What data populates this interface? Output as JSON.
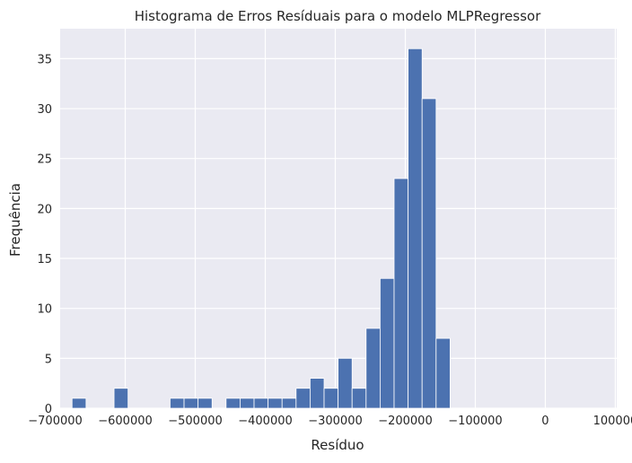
{
  "chart_data": {
    "type": "bar",
    "title": "Histograma de Erros Resíduais para o modelo MLPRegressor",
    "xlabel": "Resíduo",
    "ylabel": "Frequência",
    "xlim": [
      -693000,
      102000
    ],
    "ylim": [
      0,
      38
    ],
    "x_ticks": [
      -700000,
      -600000,
      -500000,
      -400000,
      -300000,
      -200000,
      -100000,
      0,
      100000
    ],
    "x_tick_labels": [
      "−700000",
      "−600000",
      "−500000",
      "−400000",
      "−300000",
      "−200000",
      "−100000",
      "0",
      "100000"
    ],
    "y_ticks": [
      0,
      5,
      10,
      15,
      20,
      25,
      30,
      35
    ],
    "y_tick_labels": [
      "0",
      "5",
      "10",
      "15",
      "20",
      "25",
      "30",
      "35"
    ],
    "grid": true,
    "bar_color": "#4c72b0",
    "background_color": "#eaeaf2",
    "bins": [
      {
        "x0": -676000,
        "x1": -656000,
        "count": 1
      },
      {
        "x0": -656000,
        "x1": -636000,
        "count": 0
      },
      {
        "x0": -636000,
        "x1": -616000,
        "count": 0
      },
      {
        "x0": -616000,
        "x1": -596000,
        "count": 2
      },
      {
        "x0": -596000,
        "x1": -576000,
        "count": 0
      },
      {
        "x0": -576000,
        "x1": -556000,
        "count": 0
      },
      {
        "x0": -556000,
        "x1": -536000,
        "count": 0
      },
      {
        "x0": -536000,
        "x1": -516000,
        "count": 1
      },
      {
        "x0": -516000,
        "x1": -496000,
        "count": 1
      },
      {
        "x0": -496000,
        "x1": -476000,
        "count": 1
      },
      {
        "x0": -476000,
        "x1": -456000,
        "count": 0
      },
      {
        "x0": -456000,
        "x1": -436000,
        "count": 1
      },
      {
        "x0": -436000,
        "x1": -416000,
        "count": 1
      },
      {
        "x0": -416000,
        "x1": -396000,
        "count": 1
      },
      {
        "x0": -396000,
        "x1": -376000,
        "count": 1
      },
      {
        "x0": -376000,
        "x1": -356000,
        "count": 1
      },
      {
        "x0": -356000,
        "x1": -336000,
        "count": 2
      },
      {
        "x0": -336000,
        "x1": -316000,
        "count": 3
      },
      {
        "x0": -316000,
        "x1": -296000,
        "count": 2
      },
      {
        "x0": -296000,
        "x1": -276000,
        "count": 5
      },
      {
        "x0": -276000,
        "x1": -256000,
        "count": 2
      },
      {
        "x0": -256000,
        "x1": -236000,
        "count": 8
      },
      {
        "x0": -236000,
        "x1": -216000,
        "count": 13
      },
      {
        "x0": -216000,
        "x1": -196000,
        "count": 23
      },
      {
        "x0": -196000,
        "x1": -176000,
        "count": 36
      },
      {
        "x0": -176000,
        "x1": -156000,
        "count": 31
      },
      {
        "x0": -156000,
        "x1": -136000,
        "count": 7
      }
    ]
  }
}
